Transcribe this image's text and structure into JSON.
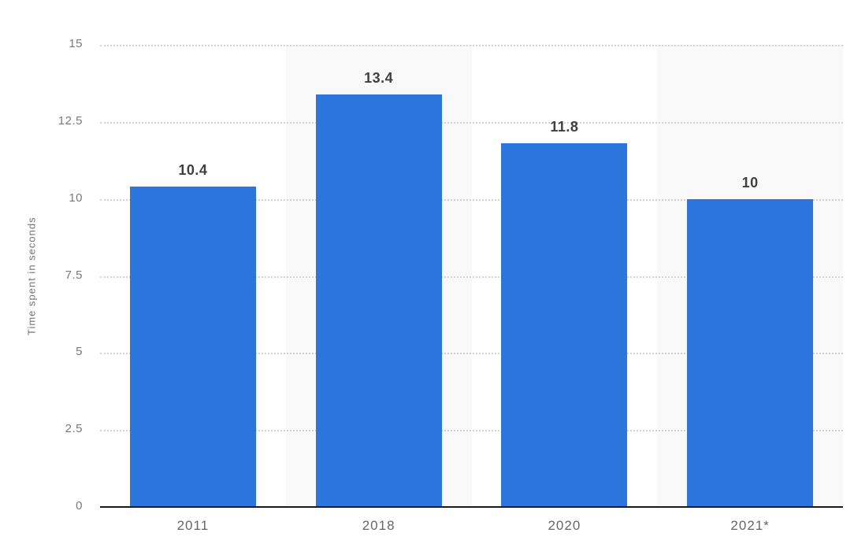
{
  "chart_data": {
    "type": "bar",
    "title": "",
    "categories": [
      "2011",
      "2018",
      "2020",
      "2021*"
    ],
    "values": [
      10.4,
      13.4,
      11.8,
      10
    ],
    "value_labels": [
      "10.4",
      "13.4",
      "11.8",
      "10"
    ],
    "xlabel": "",
    "ylabel": "Time spent in seconds",
    "ylim": [
      0,
      15
    ],
    "yticks": [
      "0",
      "2.5",
      "5",
      "7.5",
      "10",
      "12.5",
      "15"
    ],
    "grid": "horizontal-dotted",
    "legend": "none",
    "banded_columns": [
      1,
      3
    ],
    "colors": {
      "bar": "#2b75dc",
      "column_band": "#f9f9f9",
      "gridline": "#d2d2d2",
      "axis_line": "#1a1a1a",
      "tick_text": "#7a7a7a",
      "x_label_text": "#666666",
      "value_label_text": "#404040",
      "background": "#ffffff"
    }
  }
}
